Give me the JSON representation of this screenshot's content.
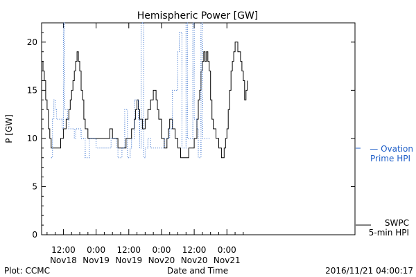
{
  "chart_data": {
    "type": "line",
    "title": "Hemispheric Power [GW]",
    "xlabel": "Date and Time",
    "ylabel": "P [GW]",
    "ylim": [
      0,
      22
    ],
    "xlim_hours": [
      -20,
      95
    ],
    "yticks": [
      0,
      5,
      10,
      15,
      20
    ],
    "xticks": [
      {
        "hours": -12,
        "line1": "12:00",
        "line2": "Nov18"
      },
      {
        "hours": 0,
        "line1": "0:00",
        "line2": "Nov19"
      },
      {
        "hours": 12,
        "line1": "12:00",
        "line2": "Nov19"
      },
      {
        "hours": 24,
        "line1": "0:00",
        "line2": "Nov20"
      },
      {
        "hours": 36,
        "line1": "12:00",
        "line2": "Nov20"
      },
      {
        "hours": 48,
        "line1": "0:00",
        "line2": "Nov21"
      }
    ],
    "series": [
      {
        "name": "SWPC 5-min HPI",
        "color": "#000000",
        "style": "solid",
        "points": [
          [
            -20,
            18
          ],
          [
            -19.5,
            17
          ],
          [
            -19,
            16
          ],
          [
            -18.5,
            14
          ],
          [
            -18,
            13
          ],
          [
            -17.5,
            11
          ],
          [
            -17,
            10
          ],
          [
            -16.5,
            9
          ],
          [
            -15,
            9
          ],
          [
            -14,
            9
          ],
          [
            -13,
            10
          ],
          [
            -12,
            11
          ],
          [
            -11,
            12
          ],
          [
            -10,
            13
          ],
          [
            -9.5,
            14
          ],
          [
            -9,
            15
          ],
          [
            -8.5,
            16
          ],
          [
            -8,
            17
          ],
          [
            -7.5,
            18
          ],
          [
            -7,
            19
          ],
          [
            -6.5,
            18
          ],
          [
            -6,
            17
          ],
          [
            -5.5,
            15
          ],
          [
            -5,
            14
          ],
          [
            -4.5,
            12
          ],
          [
            -4,
            11
          ],
          [
            -3,
            10
          ],
          [
            -2,
            10
          ],
          [
            0,
            10
          ],
          [
            2,
            10
          ],
          [
            4,
            10
          ],
          [
            5,
            11
          ],
          [
            6,
            10
          ],
          [
            7,
            10
          ],
          [
            8,
            9
          ],
          [
            9,
            9
          ],
          [
            10,
            9
          ],
          [
            11,
            10
          ],
          [
            12,
            10
          ],
          [
            13,
            11
          ],
          [
            14,
            12
          ],
          [
            14.5,
            13
          ],
          [
            15,
            14
          ],
          [
            15.5,
            13
          ],
          [
            16,
            12
          ],
          [
            17,
            11
          ],
          [
            18,
            12
          ],
          [
            19,
            13
          ],
          [
            20,
            14
          ],
          [
            21,
            15
          ],
          [
            22,
            14
          ],
          [
            22.5,
            13
          ],
          [
            23,
            12
          ],
          [
            24,
            10
          ],
          [
            25,
            9
          ],
          [
            26,
            10
          ],
          [
            26.5,
            11
          ],
          [
            27,
            12
          ],
          [
            28,
            11
          ],
          [
            29,
            10
          ],
          [
            30,
            9
          ],
          [
            31,
            8
          ],
          [
            33,
            8
          ],
          [
            34,
            9
          ],
          [
            35,
            9
          ],
          [
            36,
            10
          ],
          [
            37,
            12
          ],
          [
            37.5,
            14
          ],
          [
            38,
            15
          ],
          [
            38.5,
            17
          ],
          [
            39,
            18
          ],
          [
            39.5,
            19
          ],
          [
            40,
            18
          ],
          [
            40.5,
            19
          ],
          [
            41,
            18
          ],
          [
            41.5,
            17
          ],
          [
            42,
            14
          ],
          [
            42.5,
            12
          ],
          [
            43,
            11
          ],
          [
            44,
            10
          ],
          [
            45,
            9
          ],
          [
            46,
            8
          ],
          [
            47,
            9
          ],
          [
            47.5,
            10
          ],
          [
            48,
            11
          ],
          [
            48.5,
            13
          ],
          [
            49,
            15
          ],
          [
            49.5,
            17
          ],
          [
            50,
            18
          ],
          [
            50.5,
            19
          ],
          [
            51,
            20
          ],
          [
            52,
            19
          ],
          [
            53,
            18
          ],
          [
            53.5,
            17
          ],
          [
            54,
            16
          ],
          [
            54.5,
            14
          ],
          [
            55,
            15
          ],
          [
            55.5,
            16
          ]
        ]
      },
      {
        "name": "Ovation Prime HPI",
        "color": "#1f5fc8",
        "style": "dotted",
        "points": [
          [
            -16.5,
            8
          ],
          [
            -16,
            12
          ],
          [
            -15.5,
            14
          ],
          [
            -15,
            13
          ],
          [
            -14.5,
            12
          ],
          [
            -13,
            12
          ],
          [
            -12.5,
            11
          ],
          [
            -12,
            23
          ],
          [
            -11.5,
            13
          ],
          [
            -10.5,
            12
          ],
          [
            -10,
            11
          ],
          [
            -8,
            10
          ],
          [
            -7.5,
            11
          ],
          [
            -6,
            11
          ],
          [
            -5.5,
            10
          ],
          [
            -4,
            8
          ],
          [
            -3,
            8
          ],
          [
            -2.5,
            10
          ],
          [
            -1,
            10
          ],
          [
            0,
            9
          ],
          [
            4,
            9
          ],
          [
            5,
            9
          ],
          [
            5.5,
            10
          ],
          [
            6,
            10
          ],
          [
            7.5,
            9
          ],
          [
            8,
            8
          ],
          [
            9,
            8
          ],
          [
            9.5,
            9
          ],
          [
            10.5,
            13
          ],
          [
            11,
            13
          ],
          [
            11.5,
            8
          ],
          [
            12,
            8
          ],
          [
            12.5,
            9
          ],
          [
            13,
            10
          ],
          [
            14,
            14
          ],
          [
            15,
            14
          ],
          [
            15.5,
            12
          ],
          [
            16,
            9
          ],
          [
            16.5,
            23
          ],
          [
            17,
            23
          ],
          [
            17.5,
            8
          ],
          [
            18,
            9
          ],
          [
            19,
            10
          ],
          [
            20,
            9
          ],
          [
            24,
            9
          ],
          [
            25,
            10
          ],
          [
            27,
            11
          ],
          [
            28,
            15
          ],
          [
            30,
            19
          ],
          [
            30.5,
            21
          ],
          [
            31,
            21
          ],
          [
            31.5,
            9
          ],
          [
            32,
            9
          ],
          [
            33,
            23
          ],
          [
            33.5,
            10
          ],
          [
            35,
            10
          ],
          [
            35.5,
            23
          ],
          [
            36,
            12
          ],
          [
            37,
            11
          ],
          [
            37.5,
            8
          ],
          [
            38,
            8
          ],
          [
            38.5,
            23
          ],
          [
            39,
            10
          ],
          [
            40,
            10
          ],
          [
            42,
            10
          ]
        ]
      }
    ],
    "legend": [
      {
        "line1": "— Ovation",
        "line2": "Prime HPI",
        "color": "#1f5fc8"
      },
      {
        "line1": "SWPC",
        "line2": "5-min HPI",
        "color": "#000000"
      }
    ],
    "grid": false,
    "legend_position": "right"
  },
  "footer": {
    "left": "Plot: CCMC",
    "right": "2016/11/21 04:00:17"
  }
}
